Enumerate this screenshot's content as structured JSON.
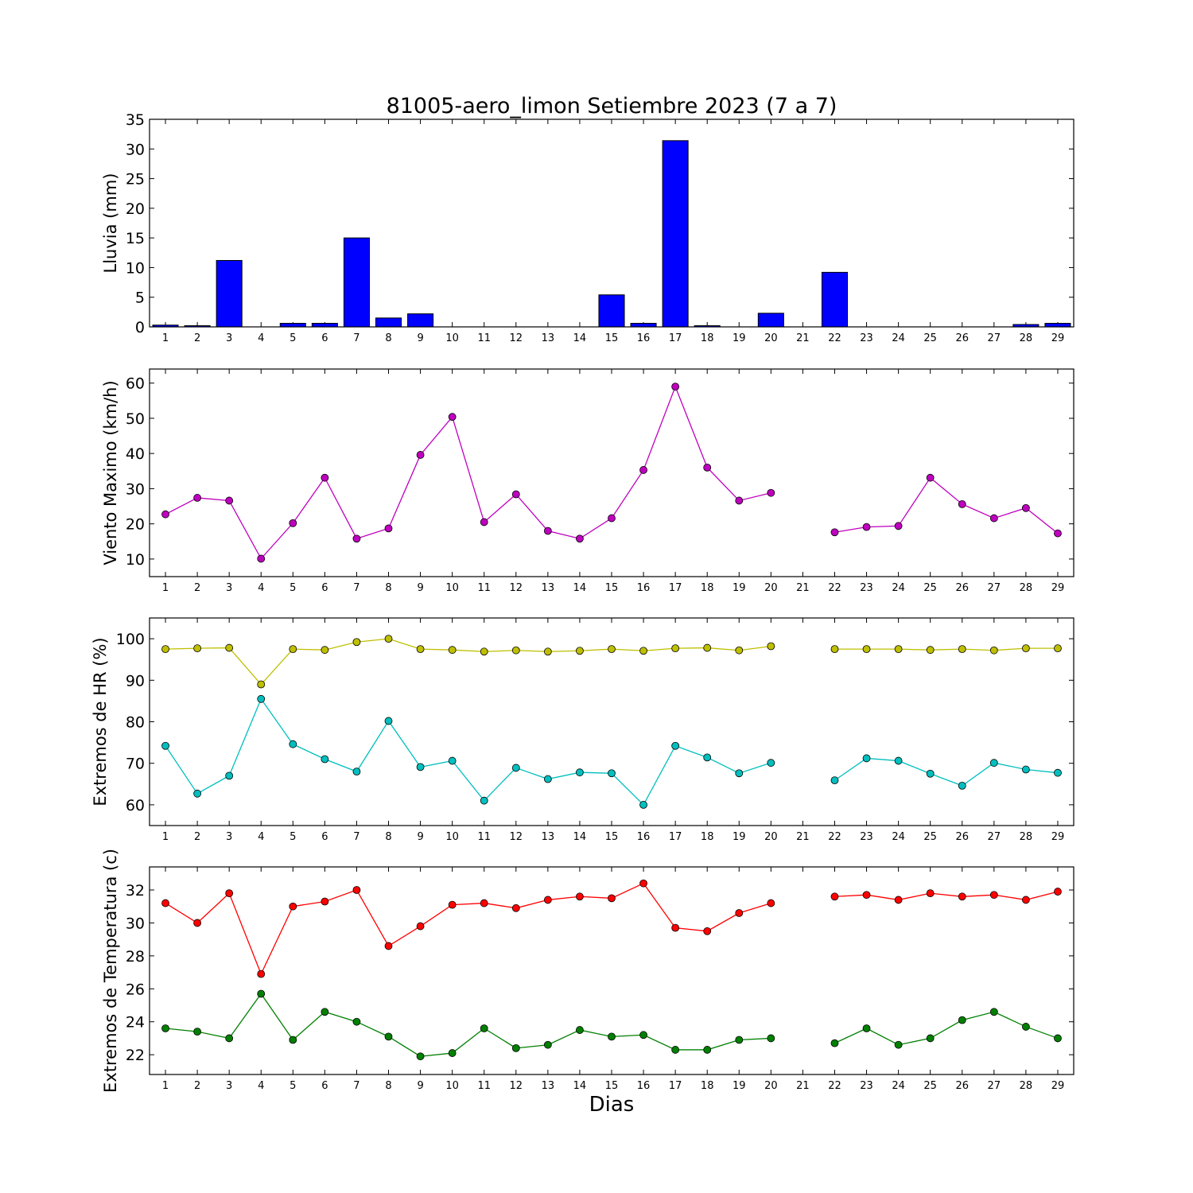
{
  "title": "81005-aero_limon Setiembre 2023  (7 a 7)",
  "xlabel": "Dias",
  "chart_data": [
    {
      "type": "bar",
      "id": "lluvia",
      "ylabel": "Lluvia (mm)",
      "ylim": [
        0,
        35
      ],
      "yticks": [
        0,
        5,
        10,
        15,
        20,
        25,
        30,
        35
      ],
      "x": [
        1,
        2,
        3,
        4,
        5,
        6,
        7,
        8,
        9,
        10,
        11,
        12,
        13,
        14,
        15,
        16,
        17,
        18,
        19,
        20,
        21,
        22,
        23,
        24,
        25,
        26,
        27,
        28,
        29
      ],
      "series": [
        {
          "color": "#0000ff",
          "values": [
            0.3,
            0.2,
            11.2,
            0.0,
            0.6,
            0.6,
            15.0,
            1.5,
            2.2,
            0.0,
            0.0,
            0.0,
            0.0,
            0.0,
            5.4,
            0.6,
            31.4,
            0.2,
            0.0,
            2.3,
            null,
            9.2,
            0.0,
            0.0,
            0.0,
            0.0,
            0.0,
            0.4,
            0.6
          ]
        }
      ]
    },
    {
      "type": "line",
      "id": "viento",
      "ylabel": "Viento Maximo (km/h)",
      "ylim": [
        5,
        64
      ],
      "yticks": [
        10,
        20,
        30,
        40,
        50,
        60
      ],
      "x": [
        1,
        2,
        3,
        4,
        5,
        6,
        7,
        8,
        9,
        10,
        11,
        12,
        13,
        14,
        15,
        16,
        17,
        18,
        19,
        20,
        21,
        22,
        23,
        24,
        25,
        26,
        27,
        28,
        29
      ],
      "series": [
        {
          "color": "#bf00bf",
          "values": [
            22.7,
            27.4,
            26.6,
            10.1,
            20.2,
            33.1,
            15.8,
            18.7,
            39.6,
            50.4,
            20.5,
            28.4,
            18.0,
            15.8,
            21.6,
            35.3,
            59.0,
            36.0,
            26.6,
            28.8,
            null,
            17.6,
            19.1,
            19.4,
            33.1,
            25.6,
            21.6,
            24.5,
            17.3
          ]
        }
      ]
    },
    {
      "type": "line",
      "id": "hr",
      "ylabel": "Extremos de HR (%)",
      "ylim": [
        55,
        105
      ],
      "yticks": [
        60,
        70,
        80,
        90,
        100
      ],
      "x": [
        1,
        2,
        3,
        4,
        5,
        6,
        7,
        8,
        9,
        10,
        11,
        12,
        13,
        14,
        15,
        16,
        17,
        18,
        19,
        20,
        21,
        22,
        23,
        24,
        25,
        26,
        27,
        28,
        29
      ],
      "series": [
        {
          "color": "#bfbf00",
          "values": [
            97.5,
            97.7,
            97.8,
            89.0,
            97.5,
            97.3,
            99.2,
            100.0,
            97.5,
            97.3,
            96.9,
            97.2,
            96.9,
            97.1,
            97.5,
            97.1,
            97.7,
            97.8,
            97.2,
            98.2,
            null,
            97.5,
            97.5,
            97.5,
            97.3,
            97.5,
            97.2,
            97.7,
            97.7
          ]
        },
        {
          "color": "#00bfbf",
          "values": [
            74.2,
            62.7,
            67.0,
            85.5,
            74.6,
            71.0,
            68.0,
            80.2,
            69.1,
            70.6,
            61.0,
            68.9,
            66.2,
            67.8,
            67.6,
            60.0,
            74.2,
            71.4,
            67.6,
            70.1,
            null,
            65.9,
            71.2,
            70.6,
            67.5,
            64.6,
            70.1,
            68.5,
            67.7
          ]
        }
      ]
    },
    {
      "type": "line",
      "id": "temp",
      "ylabel": "Extremos de Temperatura (c)",
      "ylim": [
        20.8,
        33.4
      ],
      "yticks": [
        22,
        24,
        26,
        28,
        30,
        32
      ],
      "x": [
        1,
        2,
        3,
        4,
        5,
        6,
        7,
        8,
        9,
        10,
        11,
        12,
        13,
        14,
        15,
        16,
        17,
        18,
        19,
        20,
        21,
        22,
        23,
        24,
        25,
        26,
        27,
        28,
        29
      ],
      "series": [
        {
          "color": "#ff0000",
          "values": [
            31.2,
            30.0,
            31.8,
            26.9,
            31.0,
            31.3,
            32.0,
            28.6,
            29.8,
            31.1,
            31.2,
            30.9,
            31.4,
            31.6,
            31.5,
            32.4,
            29.7,
            29.5,
            30.6,
            31.2,
            null,
            31.6,
            31.7,
            31.4,
            31.8,
            31.6,
            31.7,
            31.4,
            31.9
          ]
        },
        {
          "color": "#008000",
          "values": [
            23.6,
            23.4,
            23.0,
            25.7,
            22.9,
            24.6,
            24.0,
            23.1,
            21.9,
            22.1,
            23.6,
            22.4,
            22.6,
            23.5,
            23.1,
            23.2,
            22.3,
            22.3,
            22.9,
            23.0,
            null,
            22.7,
            23.6,
            22.6,
            23.0,
            24.1,
            24.6,
            23.7,
            23.0
          ]
        }
      ]
    }
  ]
}
